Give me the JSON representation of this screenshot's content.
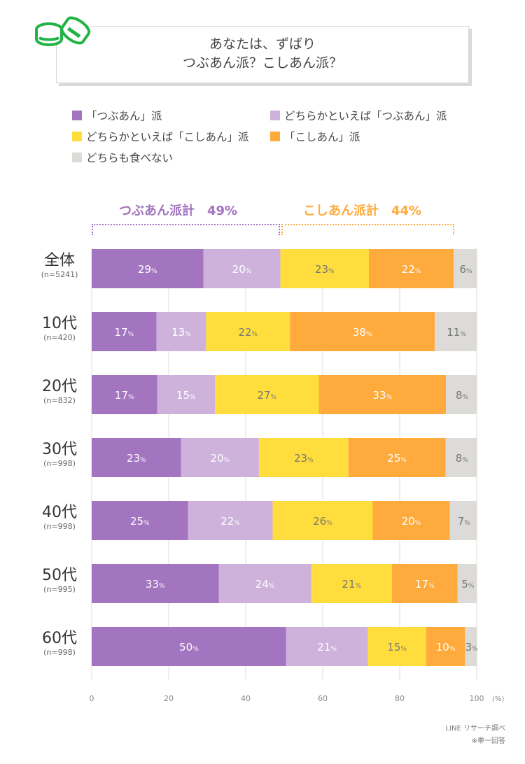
{
  "header": {
    "title_line1": "あなたは、ずばり",
    "title_line2": "つぶあん派？こしあん派？",
    "icon": "coins-icon",
    "icon_color": "#22b345"
  },
  "legend": [
    {
      "label": "「つぶあん」派",
      "color": "#a374c0"
    },
    {
      "label": "どちらかといえば「つぶあん」派",
      "color": "#ceb2dc"
    },
    {
      "label": "どちらかといえば「こしあん」派",
      "color": "#ffdd3c"
    },
    {
      "label": "「こしあん」派",
      "color": "#ffaa3c"
    },
    {
      "label": "どちらも食べない",
      "color": "#dcdbd7"
    }
  ],
  "summary": {
    "tsubuan": {
      "label": "つぶあん派計　49%",
      "color": "#a374c0"
    },
    "koshian": {
      "label": "こしあん派計　44%",
      "color": "#ffaa3c"
    }
  },
  "chart_data": {
    "type": "bar",
    "orientation": "horizontal",
    "stacked": true,
    "title": "あなたは、ずばり つぶあん派？こしあん派？",
    "xlabel": "(%)",
    "ylabel": "",
    "xlim": [
      0,
      100
    ],
    "x_ticks": [
      0,
      20,
      40,
      60,
      80,
      100
    ],
    "x_tick_labels": [
      "0",
      "20",
      "40",
      "60",
      "80",
      "100"
    ],
    "x_unit_label": "(%)",
    "grid": true,
    "legend_position": "top",
    "categories": [
      {
        "label": "全体",
        "n": "(n=5241)"
      },
      {
        "label": "10代",
        "n": "(n=420)"
      },
      {
        "label": "20代",
        "n": "(n=832)"
      },
      {
        "label": "30代",
        "n": "(n=998)"
      },
      {
        "label": "40代",
        "n": "(n=998)"
      },
      {
        "label": "50代",
        "n": "(n=995)"
      },
      {
        "label": "60代",
        "n": "(n=998)"
      }
    ],
    "series": [
      {
        "name": "「つぶあん」派",
        "color": "#a374c0",
        "text_color": "#ffffff",
        "values": [
          29,
          17,
          17,
          23,
          25,
          33,
          50
        ]
      },
      {
        "name": "どちらかといえば「つぶあん」派",
        "color": "#ceb2dc",
        "text_color": "#ffffff",
        "values": [
          20,
          13,
          15,
          20,
          22,
          24,
          21
        ]
      },
      {
        "name": "どちらかといえば「こしあん」派",
        "color": "#ffdd3c",
        "text_color": "#777777",
        "values": [
          23,
          22,
          27,
          23,
          26,
          21,
          15
        ]
      },
      {
        "name": "「こしあん」派",
        "color": "#ffaa3c",
        "text_color": "#ffffff",
        "values": [
          22,
          38,
          33,
          25,
          20,
          17,
          10
        ]
      },
      {
        "name": "どちらも食べない",
        "color": "#dcdbd7",
        "text_color": "#777777",
        "values": [
          6,
          11,
          8,
          8,
          7,
          5,
          3
        ]
      }
    ],
    "value_suffix": "%",
    "annotations": [
      "つぶあん派計　49%",
      "こしあん派計　44%"
    ]
  },
  "footer": {
    "source": "LINE リサーチ調べ",
    "note": "※単一回答"
  }
}
